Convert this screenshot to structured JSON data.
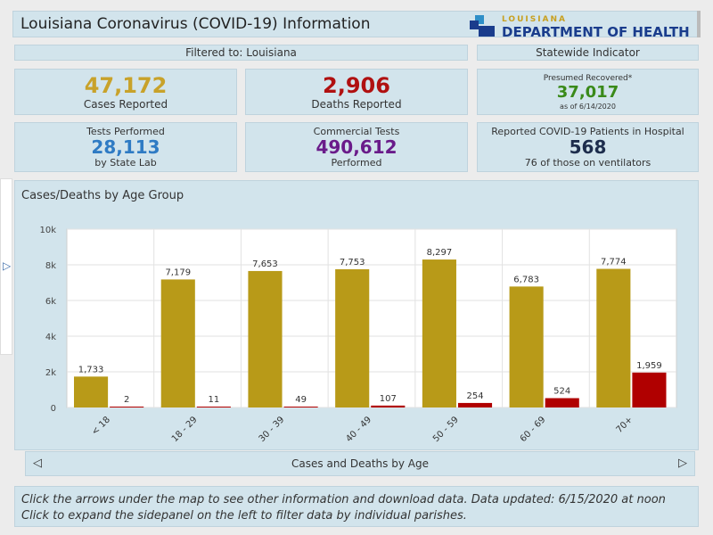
{
  "header": {
    "title": "Louisiana Coronavirus (COVID-19) Information",
    "logo_small": "LOUISIANA",
    "logo_big": "DEPARTMENT OF HEALTH"
  },
  "filter_label": "Filtered to: Louisiana",
  "statewide_label": "Statewide Indicator",
  "cards": {
    "cases": {
      "value": "47,172",
      "label": "Cases Reported"
    },
    "deaths": {
      "value": "2,906",
      "label": "Deaths Reported"
    },
    "recovered": {
      "top": "Presumed Recovered*",
      "value": "37,017",
      "date": "as of 6/14/2020"
    },
    "tests": {
      "top": "Tests Performed",
      "value": "28,113",
      "bottom": "by State Lab"
    },
    "commercial": {
      "top": "Commercial Tests",
      "value": "490,612",
      "bottom": "Performed"
    },
    "hospital": {
      "top": "Reported COVID-19 Patients in Hospital",
      "value": "568",
      "bottom": "76 of those on ventilators"
    }
  },
  "colors": {
    "cases": "#b89a18",
    "deaths": "#b00000",
    "cases_value": "#c8a22a",
    "deaths_value": "#b01010",
    "recovered_value": "#3a8a1a",
    "tests_value": "#2f7bc4",
    "commercial_value": "#6a1b8a",
    "hospital_value": "#1d2d4d"
  },
  "chart_data": {
    "type": "bar",
    "title": "Cases/Deaths by Age Group",
    "categories": [
      "< 18",
      "18 - 29",
      "30 - 39",
      "40 - 49",
      "50 - 59",
      "60 - 69",
      "70+"
    ],
    "series": [
      {
        "values": [
          1733,
          7179,
          7653,
          7753,
          8297,
          6783,
          7774
        ]
      },
      {
        "values": [
          2,
          11,
          49,
          107,
          254,
          524,
          1959
        ]
      }
    ],
    "value_labels": [
      [
        "1,733",
        "7,179",
        "7,653",
        "7,753",
        "8,297",
        "6,783",
        "7,774"
      ],
      [
        "2",
        "11",
        "49",
        "107",
        "254",
        "524",
        "1,959"
      ]
    ],
    "y_ticks": [
      "0",
      "2k",
      "4k",
      "6k",
      "8k",
      "10k"
    ],
    "ylim": [
      0,
      10000
    ],
    "grid": true
  },
  "nav": {
    "prev": "◁",
    "label": "Cases and Deaths by Age",
    "next": "▷"
  },
  "footer": {
    "line1": "Click the arrows under the map to see other information and download data. Data updated: 6/15/2020 at noon",
    "line2": "Click to expand the sidepanel on the left to filter data by individual parishes."
  }
}
